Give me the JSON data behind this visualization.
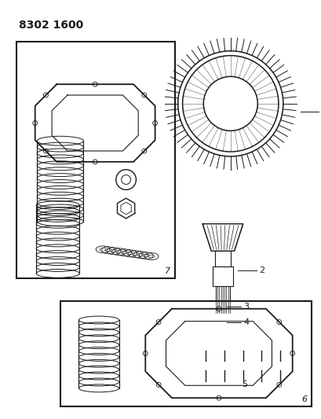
{
  "title": "8302 1600",
  "background_color": "#ffffff",
  "line_color": "#1a1a1a",
  "title_fontsize": 10,
  "figsize": [
    4.1,
    5.33
  ],
  "dpi": 100
}
